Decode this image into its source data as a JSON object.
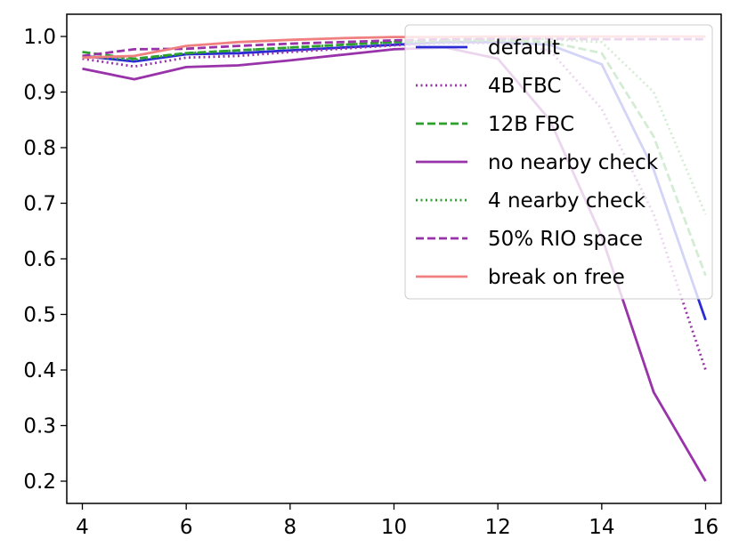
{
  "chart_data": {
    "type": "line",
    "title": "",
    "xlabel": "",
    "ylabel": "",
    "xlim": [
      3.7,
      16.3
    ],
    "ylim": [
      0.16,
      1.04
    ],
    "x_ticks": [
      4,
      6,
      8,
      10,
      12,
      14,
      16
    ],
    "y_ticks": [
      0.2,
      0.3,
      0.4,
      0.5,
      0.6,
      0.7,
      0.8,
      0.9,
      1.0
    ],
    "x_tick_labels": [
      "4",
      "6",
      "8",
      "10",
      "12",
      "14",
      "16"
    ],
    "y_tick_labels": [
      "0.2",
      "0.3",
      "0.4",
      "0.5",
      "0.6",
      "0.7",
      "0.8",
      "0.9",
      "1.0"
    ],
    "grid": false,
    "legend_position": "top-right",
    "x": [
      4,
      5,
      6,
      7,
      8,
      9,
      10,
      11,
      12,
      13,
      14,
      15,
      16
    ],
    "series": [
      {
        "name": "default",
        "color": "#2b2bd4",
        "dash": "solid",
        "values": [
          0.965,
          0.955,
          0.968,
          0.97,
          0.975,
          0.98,
          0.985,
          0.99,
          0.99,
          0.985,
          0.95,
          0.76,
          0.49
        ]
      },
      {
        "name": "4B FBC",
        "color": "#9933aa",
        "dash": "dotted",
        "values": [
          0.96,
          0.946,
          0.962,
          0.965,
          0.972,
          0.978,
          0.984,
          0.988,
          0.988,
          0.975,
          0.87,
          0.68,
          0.4
        ]
      },
      {
        "name": "12B FBC",
        "color": "#2ca02c",
        "dash": "dashed",
        "values": [
          0.972,
          0.96,
          0.97,
          0.975,
          0.98,
          0.985,
          0.99,
          0.992,
          0.993,
          0.99,
          0.97,
          0.82,
          0.57
        ]
      },
      {
        "name": "no nearby check",
        "color": "#9933aa",
        "dash": "solid",
        "values": [
          0.942,
          0.923,
          0.945,
          0.948,
          0.957,
          0.967,
          0.977,
          0.98,
          0.96,
          0.85,
          0.64,
          0.36,
          0.2
        ]
      },
      {
        "name": "4 nearby check",
        "color": "#2ca02c",
        "dash": "dotted",
        "values": [
          0.965,
          0.958,
          0.97,
          0.975,
          0.98,
          0.985,
          0.99,
          0.993,
          0.995,
          0.995,
          0.99,
          0.9,
          0.68
        ]
      },
      {
        "name": "50% RIO space",
        "color": "#9933aa",
        "dash": "dashed",
        "values": [
          0.965,
          0.977,
          0.978,
          0.983,
          0.987,
          0.99,
          0.993,
          0.995,
          0.996,
          0.996,
          0.995,
          0.995,
          0.995
        ]
      },
      {
        "name": "break on free",
        "color": "#f08080",
        "dash": "solid",
        "values": [
          0.962,
          0.965,
          0.983,
          0.99,
          0.994,
          0.997,
          0.999,
          0.999,
          1.0,
          1.0,
          1.0,
          1.0,
          1.0
        ]
      }
    ]
  }
}
